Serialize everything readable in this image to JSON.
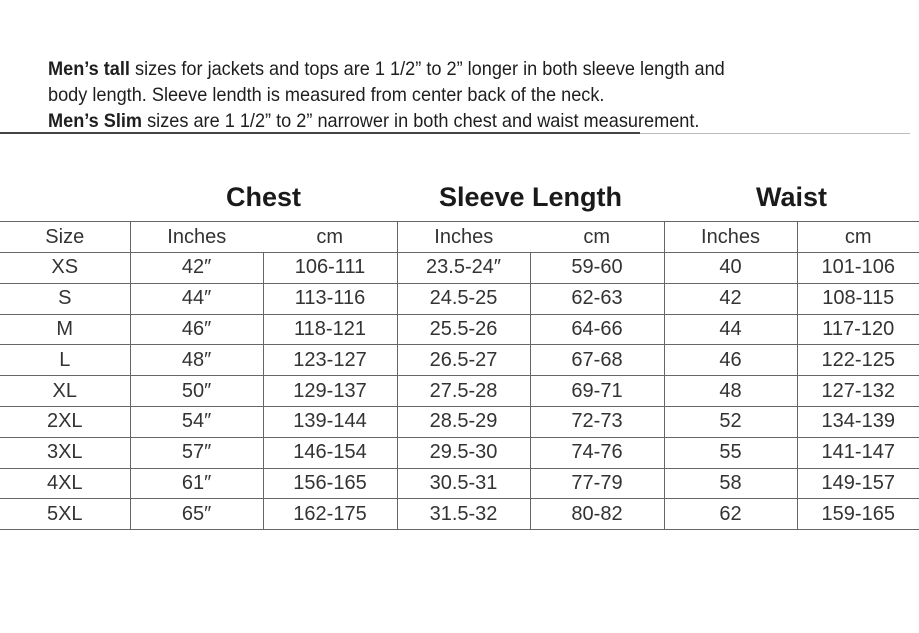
{
  "notes": {
    "line1_bold": "Men’s tall",
    "line1_rest": " sizes for jackets and tops are 1 1/2” to 2” longer in both sleeve length and",
    "line2": "body length. Sleeve lendth is measured from center back of the neck.",
    "line3_bold": "Men’s Slim",
    "line3_rest": " sizes are 1 1/2” to 2” narrower in both chest and waist measurement."
  },
  "groups": [
    "Chest",
    "Sleeve Length",
    "Waist"
  ],
  "headers": [
    "Size",
    "Inches",
    "cm",
    "Inches",
    "cm",
    "Inches",
    "cm"
  ],
  "rows": [
    [
      "XS",
      "42″",
      "106-111",
      "23.5-24″",
      "59-60",
      "40",
      "101-106"
    ],
    [
      "S",
      "44″",
      "113-116",
      "24.5-25",
      "62-63",
      "42",
      "108-115"
    ],
    [
      "M",
      "46″",
      "118-121",
      "25.5-26",
      "64-66",
      "44",
      "117-120"
    ],
    [
      "L",
      "48″",
      "123-127",
      "26.5-27",
      "67-68",
      "46",
      "122-125"
    ],
    [
      "XL",
      "50″",
      "129-137",
      "27.5-28",
      "69-71",
      "48",
      "127-132"
    ],
    [
      "2XL",
      "54″",
      "139-144",
      "28.5-29",
      "72-73",
      "52",
      "134-139"
    ],
    [
      "3XL",
      "57″",
      "146-154",
      "29.5-30",
      "74-76",
      "55",
      "141-147"
    ],
    [
      "4XL",
      "61″",
      "156-165",
      "30.5-31",
      "77-79",
      "58",
      "149-157"
    ],
    [
      "5XL",
      "65″",
      "162-175",
      "31.5-32",
      "80-82",
      "62",
      "159-165"
    ]
  ]
}
